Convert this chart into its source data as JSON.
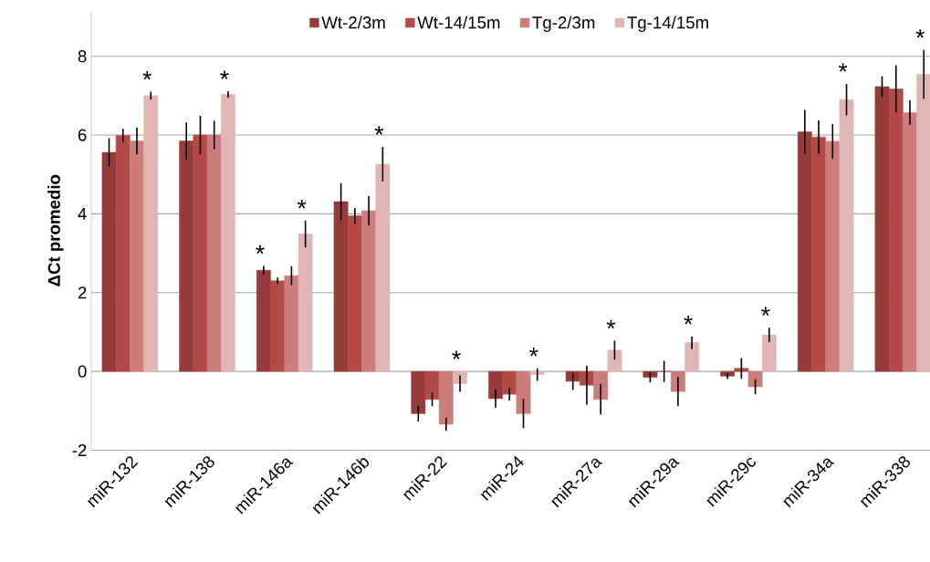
{
  "chart_data": {
    "type": "bar",
    "ylabel": "ΔCt promedio",
    "categories": [
      "miR-132",
      "miR-138",
      "miR-146a",
      "miR-146b",
      "miR-22",
      "miR-24",
      "miR-27a",
      "miR-29a",
      "miR-29c",
      "miR-34a",
      "miR-338"
    ],
    "series": [
      {
        "name": "Wt-2/3m",
        "color": "#963b3b",
        "values": [
          5.56,
          5.85,
          2.57,
          4.31,
          -1.07,
          -0.69,
          -0.25,
          -0.15,
          -0.12,
          6.08,
          7.23
        ],
        "errors": [
          0.36,
          0.47,
          0.11,
          0.47,
          0.2,
          0.23,
          0.22,
          0.13,
          0.07,
          0.56,
          0.26
        ]
      },
      {
        "name": "Wt-14/15m",
        "color": "#b34a47",
        "values": [
          5.99,
          6.0,
          2.3,
          3.95,
          -0.71,
          -0.58,
          -0.35,
          0.0,
          0.08,
          5.95,
          7.17
        ],
        "errors": [
          0.17,
          0.49,
          0.08,
          0.2,
          0.17,
          0.16,
          0.5,
          0.27,
          0.26,
          0.42,
          0.6
        ]
      },
      {
        "name": "Tg-2/3m",
        "color": "#cc7d7b",
        "values": [
          5.85,
          6.0,
          2.43,
          4.08,
          -1.34,
          -1.07,
          -0.71,
          -0.51,
          -0.39,
          5.84,
          6.57
        ],
        "errors": [
          0.34,
          0.36,
          0.24,
          0.37,
          0.17,
          0.37,
          0.39,
          0.37,
          0.19,
          0.44,
          0.31
        ]
      },
      {
        "name": "Tg-14/15m",
        "color": "#e0b6b5",
        "values": [
          7.0,
          7.03,
          3.49,
          5.26,
          -0.31,
          -0.08,
          0.54,
          0.73,
          0.93,
          6.9,
          7.54
        ],
        "errors": [
          0.1,
          0.08,
          0.34,
          0.44,
          0.21,
          0.16,
          0.24,
          0.16,
          0.18,
          0.4,
          0.62
        ]
      }
    ],
    "ylim": [
      -2,
      9.15
    ],
    "yticks": [
      -2,
      0,
      2,
      4,
      6,
      8
    ],
    "grid": "y",
    "legend": "top",
    "annotations": [
      "*",
      "*",
      "*",
      "*",
      "*",
      "*",
      "*",
      "*",
      "*",
      "*",
      "*",
      "*"
    ]
  }
}
